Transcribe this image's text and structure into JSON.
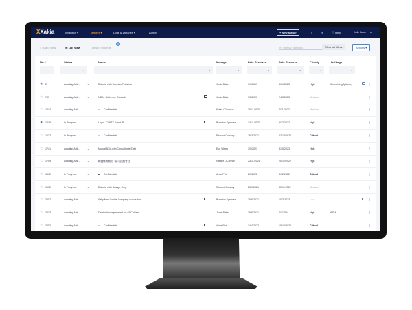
{
  "nav": {
    "logo": "Xakia",
    "items": [
      "Analytics ▾",
      "Matters ▾",
      "Logs & Libraries ▾",
      "Admin"
    ],
    "new_matter": "+ New Matter",
    "help": "Help",
    "user": "Jodie Baker",
    "accent": "#f5a623",
    "bg": "#0d1b4a"
  },
  "tabs": {
    "items": [
      "Card View",
      "List View",
      "Legal Requests"
    ],
    "badge": "5",
    "filter_placeholder": "Filter by keyword",
    "clear": "Clear all filters",
    "actions": "Actions ▾"
  },
  "columns": [
    "No. ↑",
    "Status",
    "Name",
    "Manager",
    "Date Received",
    "Date Required",
    "Priority",
    "Hashtags"
  ],
  "rows": [
    {
      "starred": true,
      "no": "2",
      "status": "Awaiting Acti...",
      "name": "Dispute with Harrison Potts Inc",
      "locked": false,
      "doc": false,
      "manager": "Jodie Baker",
      "received": "1/1/2019",
      "required": "31/1/2023",
      "priority": "High",
      "hashtags": "#ExercisingOptions,",
      "comment": true
    },
    {
      "starred": false,
      "no": "757",
      "status": "Awaiting Acti...",
      "name": "NDA - Katherine Edwards",
      "locked": false,
      "doc": true,
      "manager": "Jodie Baker",
      "received": "7/2/2020",
      "required": "24/3/2023",
      "priority": "Medium",
      "hashtags": "",
      "comment": false
    },
    {
      "starred": false,
      "no": "1414",
      "status": "Awaiting Acti...",
      "name": "Confidential",
      "locked": true,
      "doc": false,
      "manager": "Kolan O'Connor",
      "received": "26/11/2020",
      "required": "7/11/2022",
      "priority": "Medium",
      "hashtags": "",
      "comment": false
    },
    {
      "starred": true,
      "no": "1418",
      "status": "In Progress",
      "name": "Logo - CAPT7 Event IP",
      "locked": false,
      "doc": true,
      "manager": "Brandon Spencer",
      "received": "24/11/2020",
      "required": "9/12/2022",
      "priority": "High",
      "hashtags": "",
      "comment": false
    },
    {
      "starred": false,
      "no": "1632",
      "status": "In Progress",
      "name": "Confidential",
      "locked": true,
      "doc": false,
      "manager": "Richard Conway",
      "received": "26/3/2021",
      "required": "22/12/2022",
      "priority": "Critical",
      "hashtags": "",
      "comment": false
    },
    {
      "starred": false,
      "no": "1741",
      "status": "Awaiting Acti...",
      "name": "Mutual NDA with Consultants East",
      "locked": false,
      "doc": false,
      "manager": "Eve Wales",
      "received": "3/5/2021",
      "required": "31/5/2023",
      "priority": "High",
      "hashtags": "",
      "comment": false
    },
    {
      "starred": false,
      "no": "1759",
      "status": "Awaiting Acti...",
      "name": "韓國條例關於 · 慕屯控股會社",
      "locked": false,
      "doc": false,
      "manager": "Natalie OConnor",
      "received": "23/11/2021",
      "required": "20/12/2022",
      "priority": "High",
      "hashtags": "",
      "comment": false
    },
    {
      "starred": false,
      "no": "1892",
      "status": "In Progress",
      "name": "Confidential",
      "locked": true,
      "doc": false,
      "manager": "Anne Pott",
      "received": "2/5/2022",
      "required": "8/12/2022",
      "priority": "Critical",
      "hashtags": "",
      "comment": false
    },
    {
      "starred": false,
      "no": "1972",
      "status": "In Progress",
      "name": "Dispute with Orange Corp",
      "locked": false,
      "doc": false,
      "manager": "Richard Conway",
      "received": "23/9/2021",
      "required": "30/11/2022",
      "priority": "Medium",
      "hashtags": "",
      "comment": false
    },
    {
      "starred": false,
      "no": "2007",
      "status": "Awaiting Acti...",
      "name": "Sally May Cookie Company Acquisition",
      "locked": false,
      "doc": true,
      "manager": "Brandon Spencer",
      "received": "30/6/2021",
      "required": "10/2/2023",
      "priority": "Low",
      "hashtags": "",
      "comment": true
    },
    {
      "starred": false,
      "no": "2013",
      "status": "Awaiting Acti...",
      "name": "Distribution agreement for ABC Wines",
      "locked": false,
      "doc": false,
      "manager": "Jodie Baker",
      "received": "19/6/2021",
      "required": "2/1/2024",
      "priority": "High",
      "hashtags": "#NDA",
      "comment": false
    },
    {
      "starred": false,
      "no": "2052",
      "status": "Awaiting Acti...",
      "name": "Confidential",
      "locked": true,
      "doc": true,
      "manager": "Anne Pott",
      "received": "14/4/2022",
      "required": "19/12/2022",
      "priority": "Critical",
      "hashtags": "",
      "comment": false
    }
  ]
}
